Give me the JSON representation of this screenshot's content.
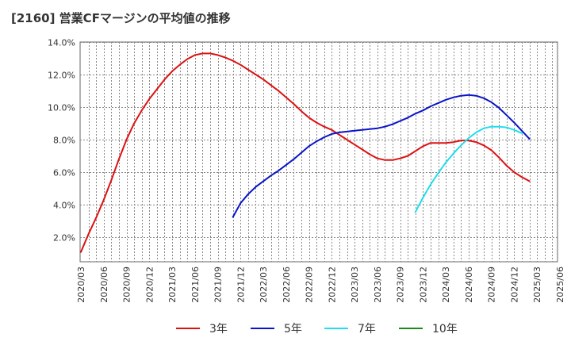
{
  "chart_data": {
    "type": "line",
    "title": "[2160]  営業CFマージンの平均値の推移",
    "xlabel": "",
    "ylabel": "",
    "ylim": [
      0.5,
      14.0
    ],
    "yticks": [
      2.0,
      4.0,
      6.0,
      8.0,
      10.0,
      12.0,
      14.0
    ],
    "ytick_labels": [
      "2.0%",
      "4.0%",
      "6.0%",
      "8.0%",
      "10.0%",
      "12.0%",
      "14.0%"
    ],
    "xtick_labels": [
      "2020/03",
      "2020/06",
      "2020/09",
      "2020/12",
      "2021/03",
      "2021/06",
      "2021/09",
      "2021/12",
      "2022/03",
      "2022/06",
      "2022/09",
      "2022/12",
      "2023/03",
      "2023/06",
      "2023/09",
      "2023/12",
      "2024/03",
      "2024/06",
      "2024/09",
      "2024/12",
      "2025/03",
      "2025/06"
    ],
    "grid": true,
    "legend_position": "bottom",
    "series": [
      {
        "name": "3年",
        "color": "#dd1111",
        "x": [
          "2020/03",
          "2020/04",
          "2020/05",
          "2020/06",
          "2020/07",
          "2020/08",
          "2020/09",
          "2020/10",
          "2020/11",
          "2020/12",
          "2021/01",
          "2021/02",
          "2021/03",
          "2021/04",
          "2021/05",
          "2021/06",
          "2021/07",
          "2021/08",
          "2021/09",
          "2021/10",
          "2021/11",
          "2021/12",
          "2022/01",
          "2022/02",
          "2022/03",
          "2022/04",
          "2022/05",
          "2022/06",
          "2022/07",
          "2022/08",
          "2022/09",
          "2022/10",
          "2022/11",
          "2022/12",
          "2023/01",
          "2023/02",
          "2023/03",
          "2023/04",
          "2023/05",
          "2023/06",
          "2023/07",
          "2023/08",
          "2023/09",
          "2023/10",
          "2023/11",
          "2023/12",
          "2024/01",
          "2024/02",
          "2024/03",
          "2024/04",
          "2024/05",
          "2024/06",
          "2024/07",
          "2024/08",
          "2024/09",
          "2024/10",
          "2024/11",
          "2024/12",
          "2025/01",
          "2025/02",
          "2025/03"
        ],
        "values": [
          1.1,
          2.2,
          3.2,
          4.3,
          5.5,
          6.8,
          8.0,
          9.0,
          9.8,
          10.5,
          11.1,
          11.7,
          12.2,
          12.6,
          12.95,
          13.2,
          13.3,
          13.3,
          13.2,
          13.05,
          12.85,
          12.6,
          12.3,
          12.0,
          11.7,
          11.35,
          11.0,
          10.6,
          10.2,
          9.75,
          9.35,
          9.05,
          8.8,
          8.6,
          8.3,
          8.0,
          7.7,
          7.4,
          7.1,
          6.85,
          6.75,
          6.75,
          6.85,
          7.0,
          7.3,
          7.6,
          7.8,
          7.8,
          7.8,
          7.85,
          7.95,
          7.95,
          7.85,
          7.65,
          7.35,
          6.9,
          6.4,
          6.0,
          5.7,
          5.45,
          null
        ]
      },
      {
        "name": "5年",
        "color": "#0a14c8",
        "x": [
          "2021/11",
          "2021/12",
          "2022/01",
          "2022/02",
          "2022/03",
          "2022/04",
          "2022/05",
          "2022/06",
          "2022/07",
          "2022/08",
          "2022/09",
          "2022/10",
          "2022/11",
          "2022/12",
          "2023/01",
          "2023/02",
          "2023/03",
          "2023/04",
          "2023/05",
          "2023/06",
          "2023/07",
          "2023/08",
          "2023/09",
          "2023/10",
          "2023/11",
          "2023/12",
          "2024/01",
          "2024/02",
          "2024/03",
          "2024/04",
          "2024/05",
          "2024/06",
          "2024/07",
          "2024/08",
          "2024/09",
          "2024/10",
          "2024/11",
          "2024/12",
          "2025/01",
          "2025/02",
          "2025/03"
        ],
        "values": [
          3.25,
          4.1,
          4.65,
          5.1,
          5.45,
          5.8,
          6.1,
          6.45,
          6.8,
          7.2,
          7.6,
          7.9,
          8.15,
          8.35,
          8.45,
          8.5,
          8.55,
          8.6,
          8.65,
          8.7,
          8.8,
          8.95,
          9.15,
          9.35,
          9.6,
          9.8,
          10.05,
          10.25,
          10.45,
          10.6,
          10.7,
          10.75,
          10.7,
          10.55,
          10.3,
          9.95,
          9.5,
          9.05,
          8.55,
          8.05,
          null
        ]
      },
      {
        "name": "7年",
        "color": "#22ddee",
        "x": [
          "2023/11",
          "2023/12",
          "2024/01",
          "2024/02",
          "2024/03",
          "2024/04",
          "2024/05",
          "2024/06",
          "2024/07",
          "2024/08",
          "2024/09",
          "2024/10",
          "2024/11",
          "2024/12",
          "2025/01",
          "2025/02",
          "2025/03"
        ],
        "values": [
          3.55,
          4.45,
          5.25,
          5.95,
          6.6,
          7.15,
          7.65,
          8.1,
          8.45,
          8.7,
          8.8,
          8.8,
          8.75,
          8.6,
          8.4,
          null,
          null
        ]
      },
      {
        "name": "10年",
        "color": "#1a8a1a",
        "x": [],
        "values": []
      }
    ]
  }
}
